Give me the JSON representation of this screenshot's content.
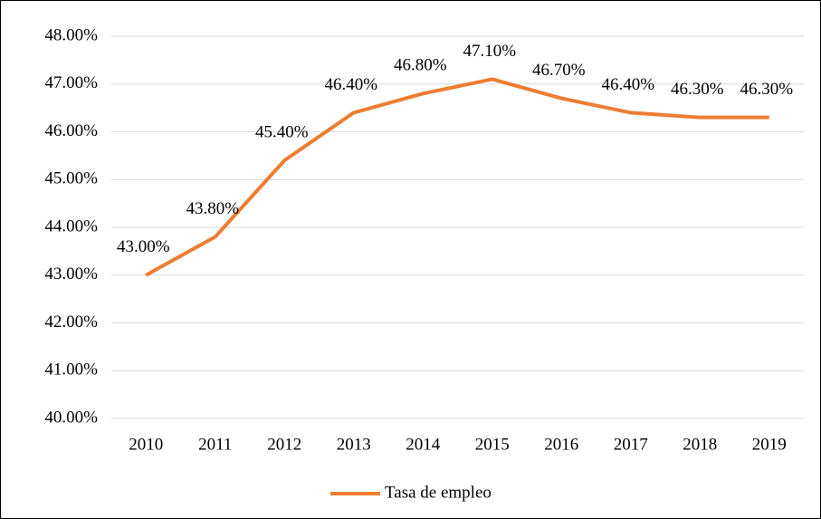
{
  "chart_data": {
    "type": "line",
    "categories": [
      "2010",
      "2011",
      "2012",
      "2013",
      "2014",
      "2015",
      "2016",
      "2017",
      "2018",
      "2019"
    ],
    "series": [
      {
        "name": "Tasa de empleo",
        "color": "#ed7d31",
        "values": [
          43.0,
          43.8,
          45.4,
          46.4,
          46.8,
          47.1,
          46.7,
          46.4,
          46.3,
          46.3
        ],
        "value_labels": [
          "43.00%",
          "43.80%",
          "45.40%",
          "46.40%",
          "46.80%",
          "47.10%",
          "46.70%",
          "46.40%",
          "46.30%",
          "46.30%"
        ]
      }
    ],
    "ylim": [
      40,
      48
    ],
    "yticks": [
      {
        "value": 40,
        "label": "40.00%"
      },
      {
        "value": 41,
        "label": "41.00%"
      },
      {
        "value": 42,
        "label": "42.00%"
      },
      {
        "value": 43,
        "label": "43.00%"
      },
      {
        "value": 44,
        "label": "44.00%"
      },
      {
        "value": 45,
        "label": "45.00%"
      },
      {
        "value": 46,
        "label": "46.00%"
      },
      {
        "value": 47,
        "label": "47.00%"
      },
      {
        "value": 48,
        "label": "48.00%"
      }
    ],
    "grid": true,
    "legend": "bottom"
  }
}
